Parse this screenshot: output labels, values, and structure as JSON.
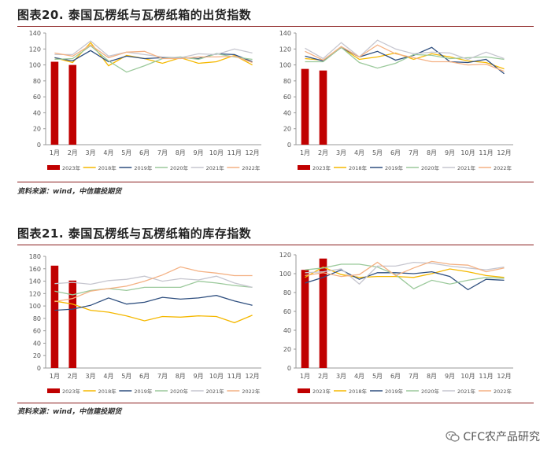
{
  "figures": [
    {
      "title": "图表20.  泰国瓦楞纸与瓦楞纸箱的出货指数",
      "source": "资料来源：wind，中信建投期货"
    },
    {
      "title": "图表21.  泰国瓦楞纸与瓦楞纸箱的库存指数",
      "source": "资料来源：wind，中信建投期货"
    }
  ],
  "watermark": {
    "text": "CFC农产品研究",
    "icon": "wechat-icon"
  },
  "chart_data": [
    {
      "type": "bar+line",
      "categories": [
        "1月",
        "2月",
        "3月",
        "4月",
        "5月",
        "6月",
        "7月",
        "8月",
        "9月",
        "10月",
        "11月",
        "12月"
      ],
      "ylim": [
        0,
        140
      ],
      "yticks": [
        0,
        20,
        40,
        60,
        80,
        100,
        120,
        140
      ],
      "legend_position": "bottom",
      "grid": false,
      "series": [
        {
          "name": "2023年",
          "kind": "bar",
          "color": "#c00000",
          "values": [
            104,
            100,
            null,
            null,
            null,
            null,
            null,
            null,
            null,
            null,
            null,
            null
          ]
        },
        {
          "name": "2018年",
          "kind": "line",
          "color": "#f5b800",
          "values": [
            109,
            103,
            128,
            99,
            112,
            108,
            102,
            109,
            102,
            104,
            112,
            100
          ]
        },
        {
          "name": "2019年",
          "kind": "line",
          "color": "#2f4f7f",
          "values": [
            109,
            105,
            118,
            104,
            111,
            108,
            109,
            109,
            108,
            114,
            113,
            104
          ]
        },
        {
          "name": "2020年",
          "kind": "line",
          "color": "#9bc99b",
          "values": [
            107,
            108,
            124,
            105,
            91,
            99,
            108,
            110,
            107,
            114,
            110,
            107
          ]
        },
        {
          "name": "2021年",
          "kind": "line",
          "color": "#c6c6cf",
          "values": [
            113,
            113,
            130,
            111,
            116,
            113,
            110,
            109,
            114,
            113,
            120,
            115
          ]
        },
        {
          "name": "2022年",
          "kind": "line",
          "color": "#f4b183",
          "values": [
            115,
            111,
            125,
            109,
            116,
            117,
            108,
            108,
            110,
            110,
            111,
            103
          ]
        }
      ]
    },
    {
      "type": "bar+line",
      "categories": [
        "1月",
        "2月",
        "3月",
        "4月",
        "5月",
        "6月",
        "7月",
        "8月",
        "9月",
        "10月",
        "11月",
        "12月"
      ],
      "ylim": [
        0,
        140
      ],
      "yticks": [
        0,
        20,
        40,
        60,
        80,
        100,
        120,
        140
      ],
      "legend_position": "bottom",
      "grid": false,
      "series": [
        {
          "name": "2023年",
          "kind": "bar",
          "color": "#c00000",
          "values": [
            95,
            93,
            null,
            null,
            null,
            null,
            null,
            null,
            null,
            null,
            null,
            null
          ]
        },
        {
          "name": "2018年",
          "kind": "line",
          "color": "#f5b800",
          "values": [
            108,
            106,
            122,
            107,
            110,
            115,
            107,
            114,
            110,
            105,
            103,
            95
          ]
        },
        {
          "name": "2019年",
          "kind": "line",
          "color": "#2f4f7f",
          "values": [
            111,
            105,
            122,
            110,
            117,
            106,
            112,
            122,
            104,
            103,
            107,
            89
          ]
        },
        {
          "name": "2020年",
          "kind": "line",
          "color": "#9bc99b",
          "values": [
            104,
            104,
            122,
            103,
            96,
            102,
            113,
            112,
            108,
            109,
            110,
            107
          ]
        },
        {
          "name": "2021年",
          "kind": "line",
          "color": "#c6c6cf",
          "values": [
            121,
            108,
            128,
            110,
            131,
            120,
            114,
            116,
            115,
            107,
            116,
            108
          ]
        },
        {
          "name": "2022年",
          "kind": "line",
          "color": "#f4b183",
          "values": [
            117,
            106,
            123,
            110,
            125,
            114,
            109,
            104,
            104,
            100,
            101,
            92
          ]
        }
      ]
    },
    {
      "type": "bar+line",
      "categories": [
        "1月",
        "2月",
        "3月",
        "4月",
        "5月",
        "6月",
        "7月",
        "8月",
        "9月",
        "10月",
        "11月",
        "12月"
      ],
      "ylim": [
        0,
        180
      ],
      "yticks": [
        0,
        20,
        40,
        60,
        80,
        100,
        120,
        140,
        160,
        180
      ],
      "legend_position": "bottom",
      "grid": false,
      "series": [
        {
          "name": "2023年",
          "kind": "bar",
          "color": "#c00000",
          "values": [
            165,
            141,
            null,
            null,
            null,
            null,
            null,
            null,
            null,
            null,
            null,
            null
          ]
        },
        {
          "name": "2018年",
          "kind": "line",
          "color": "#f5b800",
          "values": [
            108,
            103,
            93,
            90,
            84,
            76,
            83,
            82,
            84,
            83,
            73,
            85
          ]
        },
        {
          "name": "2019年",
          "kind": "line",
          "color": "#2f4f7f",
          "values": [
            93,
            95,
            101,
            113,
            103,
            106,
            114,
            111,
            113,
            117,
            108,
            101
          ]
        },
        {
          "name": "2020年",
          "kind": "line",
          "color": "#9bc99b",
          "values": [
            124,
            118,
            125,
            128,
            125,
            130,
            130,
            130,
            140,
            137,
            133,
            130
          ]
        },
        {
          "name": "2021年",
          "kind": "line",
          "color": "#c6c6cf",
          "values": [
            136,
            138,
            135,
            141,
            143,
            148,
            140,
            144,
            142,
            148,
            137,
            130
          ]
        },
        {
          "name": "2022年",
          "kind": "line",
          "color": "#f4b183",
          "values": [
            107,
            112,
            124,
            128,
            132,
            140,
            150,
            163,
            156,
            153,
            149,
            149
          ]
        }
      ]
    },
    {
      "type": "bar+line",
      "categories": [
        "1月",
        "2月",
        "3月",
        "4月",
        "5月",
        "6月",
        "7月",
        "8月",
        "9月",
        "10月",
        "11月",
        "12月"
      ],
      "ylim": [
        0,
        120
      ],
      "yticks": [
        0,
        20,
        40,
        60,
        80,
        100,
        120
      ],
      "legend_position": "bottom",
      "grid": false,
      "series": [
        {
          "name": "2023年",
          "kind": "bar",
          "color": "#c00000",
          "values": [
            104,
            116,
            null,
            null,
            null,
            null,
            null,
            null,
            null,
            null,
            null,
            null
          ]
        },
        {
          "name": "2018年",
          "kind": "line",
          "color": "#f5b800",
          "values": [
            96,
            107,
            99,
            96,
            97,
            97,
            96,
            100,
            105,
            102,
            98,
            96
          ]
        },
        {
          "name": "2019年",
          "kind": "line",
          "color": "#2f4f7f",
          "values": [
            90,
            96,
            104,
            94,
            101,
            101,
            100,
            102,
            97,
            83,
            94,
            93
          ]
        },
        {
          "name": "2020年",
          "kind": "line",
          "color": "#9bc99b",
          "values": [
            104,
            106,
            110,
            110,
            107,
            99,
            84,
            93,
            89,
            93,
            96,
            95
          ]
        },
        {
          "name": "2021年",
          "kind": "line",
          "color": "#c6c6cf",
          "values": [
            101,
            102,
            105,
            89,
            108,
            108,
            112,
            111,
            108,
            106,
            104,
            107
          ]
        },
        {
          "name": "2022年",
          "kind": "line",
          "color": "#f4b183",
          "values": [
            98,
            101,
            97,
            99,
            112,
            98,
            106,
            113,
            110,
            109,
            102,
            106
          ]
        }
      ]
    }
  ]
}
